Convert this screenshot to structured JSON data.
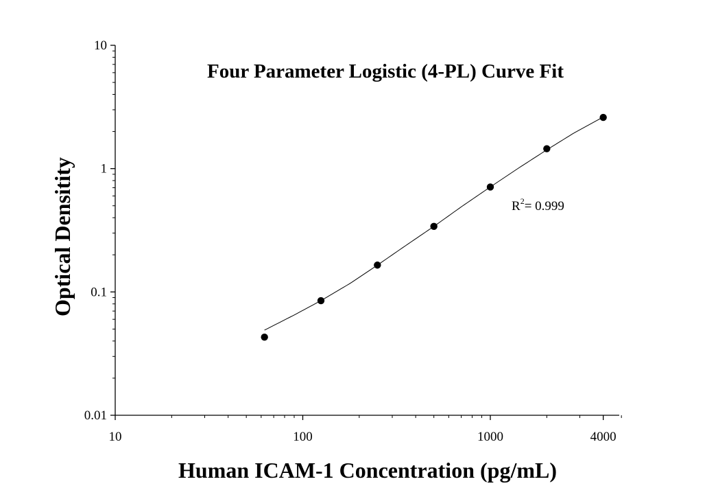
{
  "chart_data": {
    "type": "scatter",
    "title": "Four Parameter Logistic (4-PL) Curve Fit",
    "xlabel": "Human ICAM-1 Concentration (pg/mL)",
    "ylabel": "Optical Densitity",
    "xscale": "log",
    "yscale": "log",
    "xlim": [
      10,
      5000
    ],
    "ylim": [
      0.01,
      10
    ],
    "xticks": [
      10,
      100,
      1000,
      4000
    ],
    "xtick_labels": [
      "10",
      "100",
      "1000",
      "4000"
    ],
    "yticks": [
      0.01,
      0.1,
      1,
      10
    ],
    "ytick_labels": [
      "0.01",
      "0.1",
      "1",
      "10"
    ],
    "grid": false,
    "series": [
      {
        "marker": "circle",
        "color": "#000000",
        "x": [
          62.5,
          125,
          250,
          500,
          1000,
          2000,
          4000
        ],
        "y": [
          0.043,
          0.085,
          0.165,
          0.34,
          0.71,
          1.45,
          2.6
        ]
      }
    ],
    "fit_curve": {
      "model": "4-PL",
      "color": "#000000",
      "x_range": [
        62.5,
        4000
      ],
      "points": [
        [
          62.5,
          0.049
        ],
        [
          90,
          0.065
        ],
        [
          125,
          0.085
        ],
        [
          180,
          0.118
        ],
        [
          250,
          0.165
        ],
        [
          350,
          0.235
        ],
        [
          500,
          0.34
        ],
        [
          700,
          0.49
        ],
        [
          1000,
          0.71
        ],
        [
          1400,
          1.0
        ],
        [
          2000,
          1.42
        ],
        [
          2800,
          1.95
        ],
        [
          4000,
          2.62
        ]
      ]
    },
    "annotation": {
      "prefix": "R",
      "superscript": "2",
      "suffix": "= 0.999"
    }
  }
}
